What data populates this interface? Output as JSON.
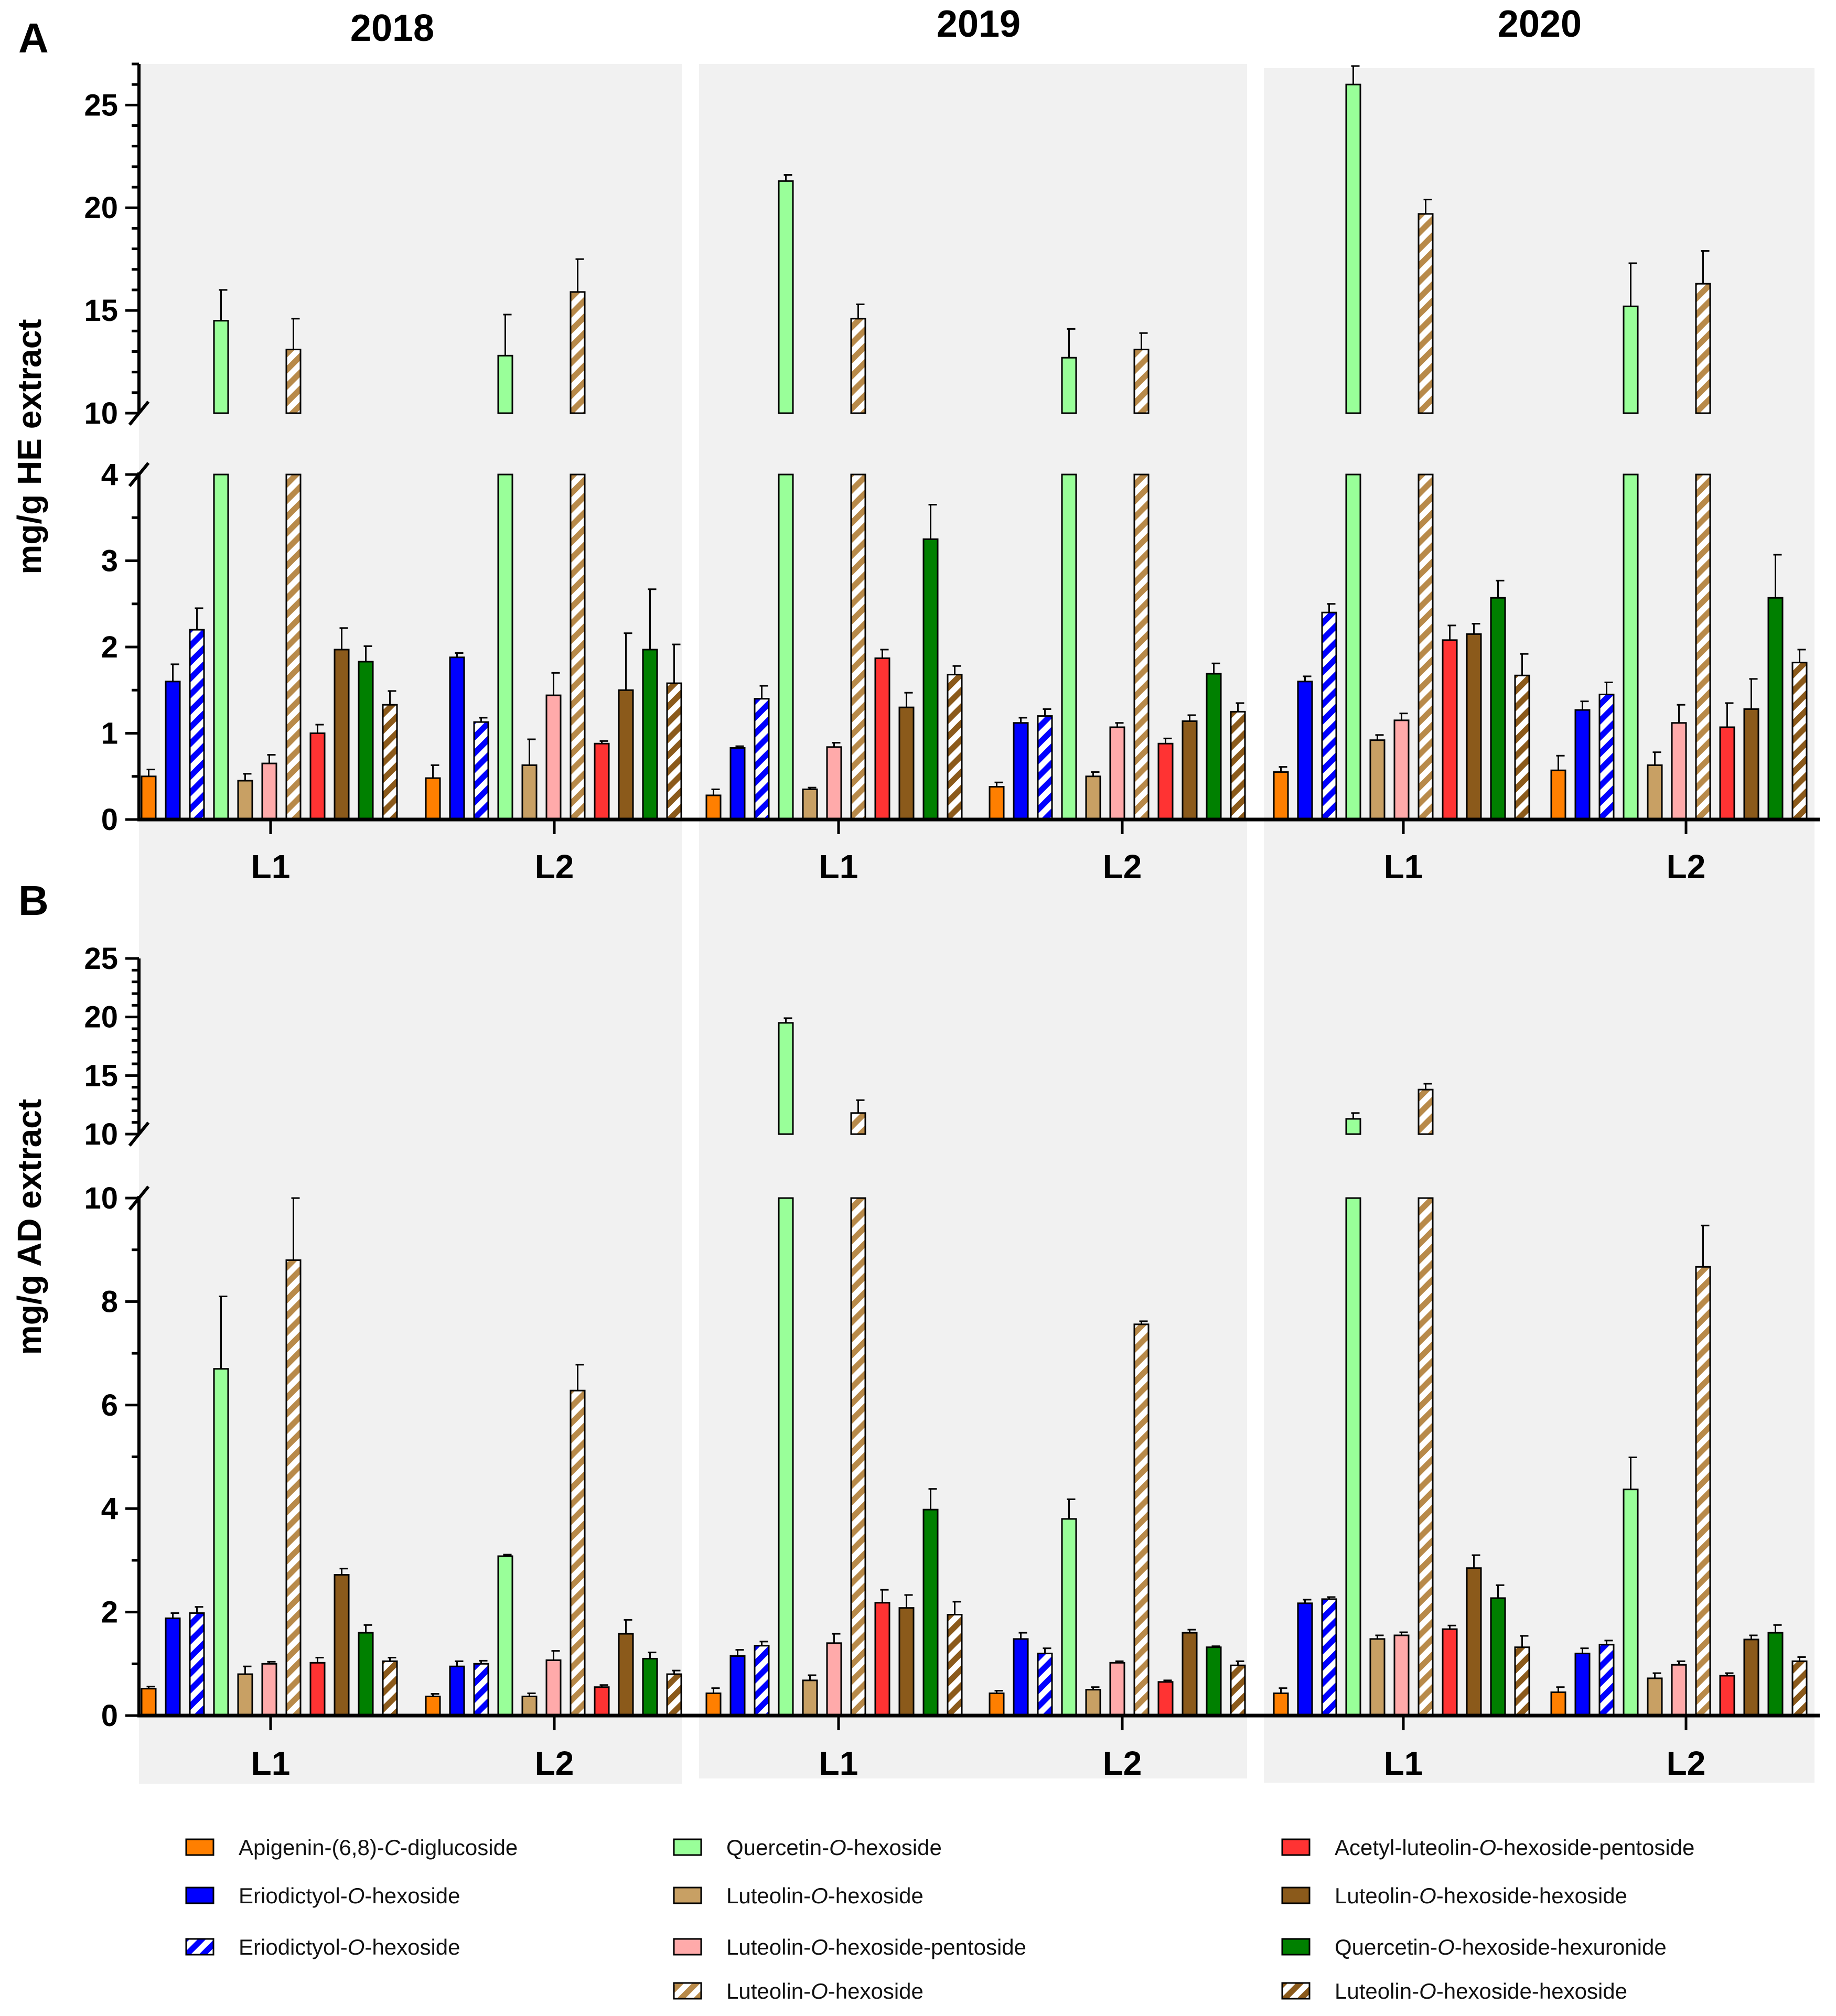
{
  "panels": [
    {
      "label": "A",
      "ylabel": "mg/g HE extract"
    },
    {
      "label": "B",
      "ylabel": "mg/g AD extract"
    }
  ],
  "years": [
    "2018",
    "2019",
    "2020"
  ],
  "groups": [
    "L1",
    "L2"
  ],
  "series": [
    {
      "key": "apigenin",
      "name": "Apigenin-(6,8)-C-diglucoside",
      "parts": [
        [
          "Apigenin-(6,8)-",
          false
        ],
        [
          "C",
          true
        ],
        [
          "-diglucoside",
          false
        ]
      ],
      "color": "#ff7f00",
      "hatched": false
    },
    {
      "key": "eriod",
      "name": "Eriodictyol-O-hexoside",
      "parts": [
        [
          "Eriodictyol-",
          false
        ],
        [
          "O",
          true
        ],
        [
          "-hexoside",
          false
        ]
      ],
      "color": "#0000ff",
      "hatched": false
    },
    {
      "key": "eriod_h",
      "name": "Eriodictyol-O-hexoside",
      "parts": [
        [
          "Eriodictyol-",
          false
        ],
        [
          "O",
          true
        ],
        [
          "-hexoside",
          false
        ]
      ],
      "color": "#0000ff",
      "hatched": true
    },
    {
      "key": "querc",
      "name": "Quercetin-O-hexoside",
      "parts": [
        [
          "Quercetin-",
          false
        ],
        [
          "O",
          true
        ],
        [
          "-hexoside",
          false
        ]
      ],
      "color": "#99ff99",
      "hatched": false
    },
    {
      "key": "lut",
      "name": "Luteolin-O-hexoside",
      "parts": [
        [
          "Luteolin-",
          false
        ],
        [
          "O",
          true
        ],
        [
          "-hexoside",
          false
        ]
      ],
      "color": "#c8a064",
      "hatched": false
    },
    {
      "key": "lut_pent",
      "name": "Luteolin-O-hexoside-pentoside",
      "parts": [
        [
          "Luteolin-",
          false
        ],
        [
          "O",
          true
        ],
        [
          "-hexoside-pentoside",
          false
        ]
      ],
      "color": "#ffaaaa",
      "hatched": false
    },
    {
      "key": "lut_h",
      "name": "Luteolin-O-hexoside",
      "parts": [
        [
          "Luteolin-",
          false
        ],
        [
          "O",
          true
        ],
        [
          "-hexoside",
          false
        ]
      ],
      "color": "#b88a4a",
      "hatched": true
    },
    {
      "key": "acetyl",
      "name": "Acetyl-luteolin-O-hexoside-pentoside",
      "parts": [
        [
          "Acetyl-luteolin-",
          false
        ],
        [
          "O",
          true
        ],
        [
          "-hexoside-pentoside",
          false
        ]
      ],
      "color": "#ff3333",
      "hatched": false
    },
    {
      "key": "luthh",
      "name": "Luteolin-O-hexoside-hexoside",
      "parts": [
        [
          "Luteolin-",
          false
        ],
        [
          "O",
          true
        ],
        [
          "-hexoside-hexoside",
          false
        ]
      ],
      "color": "#8b5a1b",
      "hatched": false
    },
    {
      "key": "querc_hex",
      "name": "Quercetin-O-hexoside-hexuronide",
      "parts": [
        [
          "Quercetin-",
          false
        ],
        [
          "O",
          true
        ],
        [
          "-hexoside-hexuronide",
          false
        ]
      ],
      "color": "#008000",
      "hatched": false
    },
    {
      "key": "luthh_h",
      "name": "Luteolin-O-hexoside-hexoside",
      "parts": [
        [
          "Luteolin-",
          false
        ],
        [
          "O",
          true
        ],
        [
          "-hexoside-hexoside",
          false
        ]
      ],
      "color": "#8b5a1b",
      "hatched": true
    }
  ],
  "chart_data": [
    {
      "type": "bar",
      "panel": "A",
      "ylabel": "mg/g HE extract",
      "axis_break": {
        "lower_range": [
          0,
          4
        ],
        "upper_range": [
          10,
          27
        ]
      },
      "lower_ticks": [
        0,
        1,
        2,
        3,
        4
      ],
      "upper_ticks": [
        10,
        15,
        20,
        25
      ],
      "values": [
        [
          [
            0.5,
            1.6,
            2.2,
            14.5,
            0.45,
            0.65,
            13.1,
            1.0,
            1.97,
            1.83,
            1.33
          ],
          [
            0.48,
            1.88,
            1.13,
            12.8,
            0.63,
            1.44,
            15.9,
            0.88,
            1.5,
            1.97,
            1.58
          ]
        ],
        [
          [
            0.28,
            0.83,
            1.4,
            21.3,
            0.35,
            0.84,
            14.6,
            1.87,
            1.3,
            3.25,
            1.68
          ],
          [
            0.38,
            1.12,
            1.2,
            12.7,
            0.5,
            1.07,
            13.1,
            0.88,
            1.14,
            1.69,
            1.25
          ]
        ],
        [
          [
            0.55,
            1.6,
            2.4,
            26.0,
            0.92,
            1.15,
            19.7,
            2.08,
            2.15,
            2.57,
            1.67
          ],
          [
            0.57,
            1.27,
            1.45,
            15.2,
            0.63,
            1.12,
            16.3,
            1.07,
            1.28,
            2.57,
            1.82
          ]
        ]
      ],
      "errors": [
        [
          [
            0.08,
            0.2,
            0.25,
            1.5,
            0.08,
            0.1,
            1.5,
            0.1,
            0.25,
            0.18,
            0.16
          ],
          [
            0.15,
            0.05,
            0.05,
            2.0,
            0.3,
            0.26,
            1.6,
            0.03,
            0.66,
            0.7,
            0.45
          ]
        ],
        [
          [
            0.07,
            0.02,
            0.15,
            0.3,
            0.02,
            0.05,
            0.7,
            0.1,
            0.17,
            0.4,
            0.1
          ],
          [
            0.05,
            0.06,
            0.08,
            1.4,
            0.05,
            0.05,
            0.8,
            0.06,
            0.07,
            0.12,
            0.1
          ]
        ],
        [
          [
            0.06,
            0.06,
            0.1,
            0.9,
            0.06,
            0.08,
            0.7,
            0.17,
            0.12,
            0.2,
            0.25
          ],
          [
            0.17,
            0.1,
            0.14,
            2.1,
            0.15,
            0.21,
            1.6,
            0.28,
            0.35,
            0.5,
            0.15
          ]
        ]
      ]
    },
    {
      "type": "bar",
      "panel": "B",
      "ylabel": "mg/g AD extract",
      "axis_break": {
        "lower_range": [
          0,
          10
        ],
        "upper_range": [
          10,
          25
        ]
      },
      "lower_ticks": [
        0,
        2,
        4,
        6,
        8,
        10
      ],
      "upper_ticks": [
        10,
        15,
        20,
        25
      ],
      "values": [
        [
          [
            0.52,
            1.88,
            1.98,
            6.7,
            0.8,
            1.0,
            8.8,
            1.02,
            2.72,
            1.6,
            1.05
          ],
          [
            0.37,
            0.95,
            1.0,
            3.08,
            0.37,
            1.07,
            6.28,
            0.55,
            1.58,
            1.1,
            0.8
          ]
        ],
        [
          [
            0.43,
            1.15,
            1.35,
            19.5,
            0.68,
            1.4,
            11.8,
            2.18,
            2.08,
            3.98,
            1.95
          ],
          [
            0.43,
            1.48,
            1.2,
            3.8,
            0.5,
            1.02,
            7.56,
            0.65,
            1.6,
            1.32,
            0.97
          ]
        ],
        [
          [
            0.43,
            2.17,
            2.25,
            11.3,
            1.48,
            1.55,
            13.8,
            1.67,
            2.85,
            2.27,
            1.32
          ],
          [
            0.45,
            1.2,
            1.37,
            4.37,
            0.72,
            0.98,
            8.67,
            0.77,
            1.47,
            1.6,
            1.05
          ]
        ]
      ],
      "errors": [
        [
          [
            0.04,
            0.1,
            0.12,
            1.4,
            0.15,
            0.04,
            1.2,
            0.1,
            0.12,
            0.15,
            0.07
          ],
          [
            0.05,
            0.1,
            0.06,
            0.03,
            0.06,
            0.18,
            0.5,
            0.04,
            0.27,
            0.12,
            0.07
          ]
        ],
        [
          [
            0.1,
            0.12,
            0.08,
            0.4,
            0.1,
            0.18,
            1.1,
            0.25,
            0.25,
            0.4,
            0.25
          ],
          [
            0.05,
            0.12,
            0.1,
            0.38,
            0.05,
            0.03,
            0.06,
            0.03,
            0.06,
            0.02,
            0.08
          ]
        ],
        [
          [
            0.1,
            0.07,
            0.04,
            0.5,
            0.07,
            0.06,
            0.5,
            0.07,
            0.25,
            0.25,
            0.22
          ],
          [
            0.1,
            0.1,
            0.08,
            0.62,
            0.1,
            0.07,
            0.8,
            0.05,
            0.08,
            0.15,
            0.08
          ]
        ]
      ]
    }
  ]
}
